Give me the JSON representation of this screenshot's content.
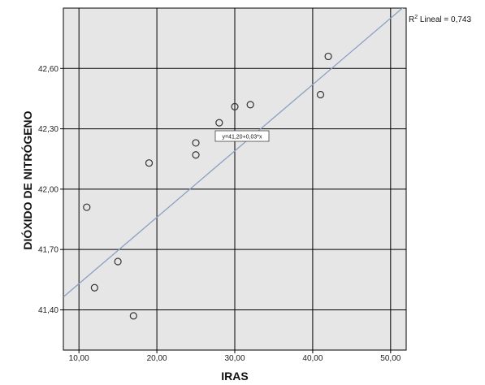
{
  "chart_data": {
    "type": "scatter",
    "xlabel": "IRAS",
    "ylabel": "DIÓXIDO DE NITRÓGENO",
    "xlim": [
      8,
      52
    ],
    "ylim": [
      41.2,
      42.9
    ],
    "x_ticks": [
      10,
      20,
      30,
      40,
      50
    ],
    "x_tick_labels": [
      "10,00",
      "20,00",
      "30,00",
      "40,00",
      "50,00"
    ],
    "y_ticks": [
      41.4,
      41.7,
      42.0,
      42.3,
      42.6
    ],
    "y_tick_labels": [
      "41,40",
      "41,70",
      "42,00",
      "42,30",
      "42,60"
    ],
    "grid": true,
    "points": [
      {
        "x": 11,
        "y": 41.91
      },
      {
        "x": 12,
        "y": 41.51
      },
      {
        "x": 15,
        "y": 41.64
      },
      {
        "x": 17,
        "y": 41.37
      },
      {
        "x": 19,
        "y": 42.13
      },
      {
        "x": 25,
        "y": 42.23
      },
      {
        "x": 25,
        "y": 42.17
      },
      {
        "x": 28,
        "y": 42.33
      },
      {
        "x": 30,
        "y": 42.41
      },
      {
        "x": 32,
        "y": 42.42
      },
      {
        "x": 41,
        "y": 42.47
      },
      {
        "x": 42,
        "y": 42.66
      }
    ],
    "fit_line": {
      "intercept": 41.2,
      "slope": 0.033
    },
    "fit_equation_label": "y=41,20+0,03*x",
    "r2_label_prefix": "R",
    "r2_label_suffix": " Lineal = 0,743",
    "colors": {
      "plot_background": "#e6e6e6",
      "gridline": "#000000",
      "fit_line": "#8c9fc4",
      "point_stroke": "#333333"
    }
  }
}
